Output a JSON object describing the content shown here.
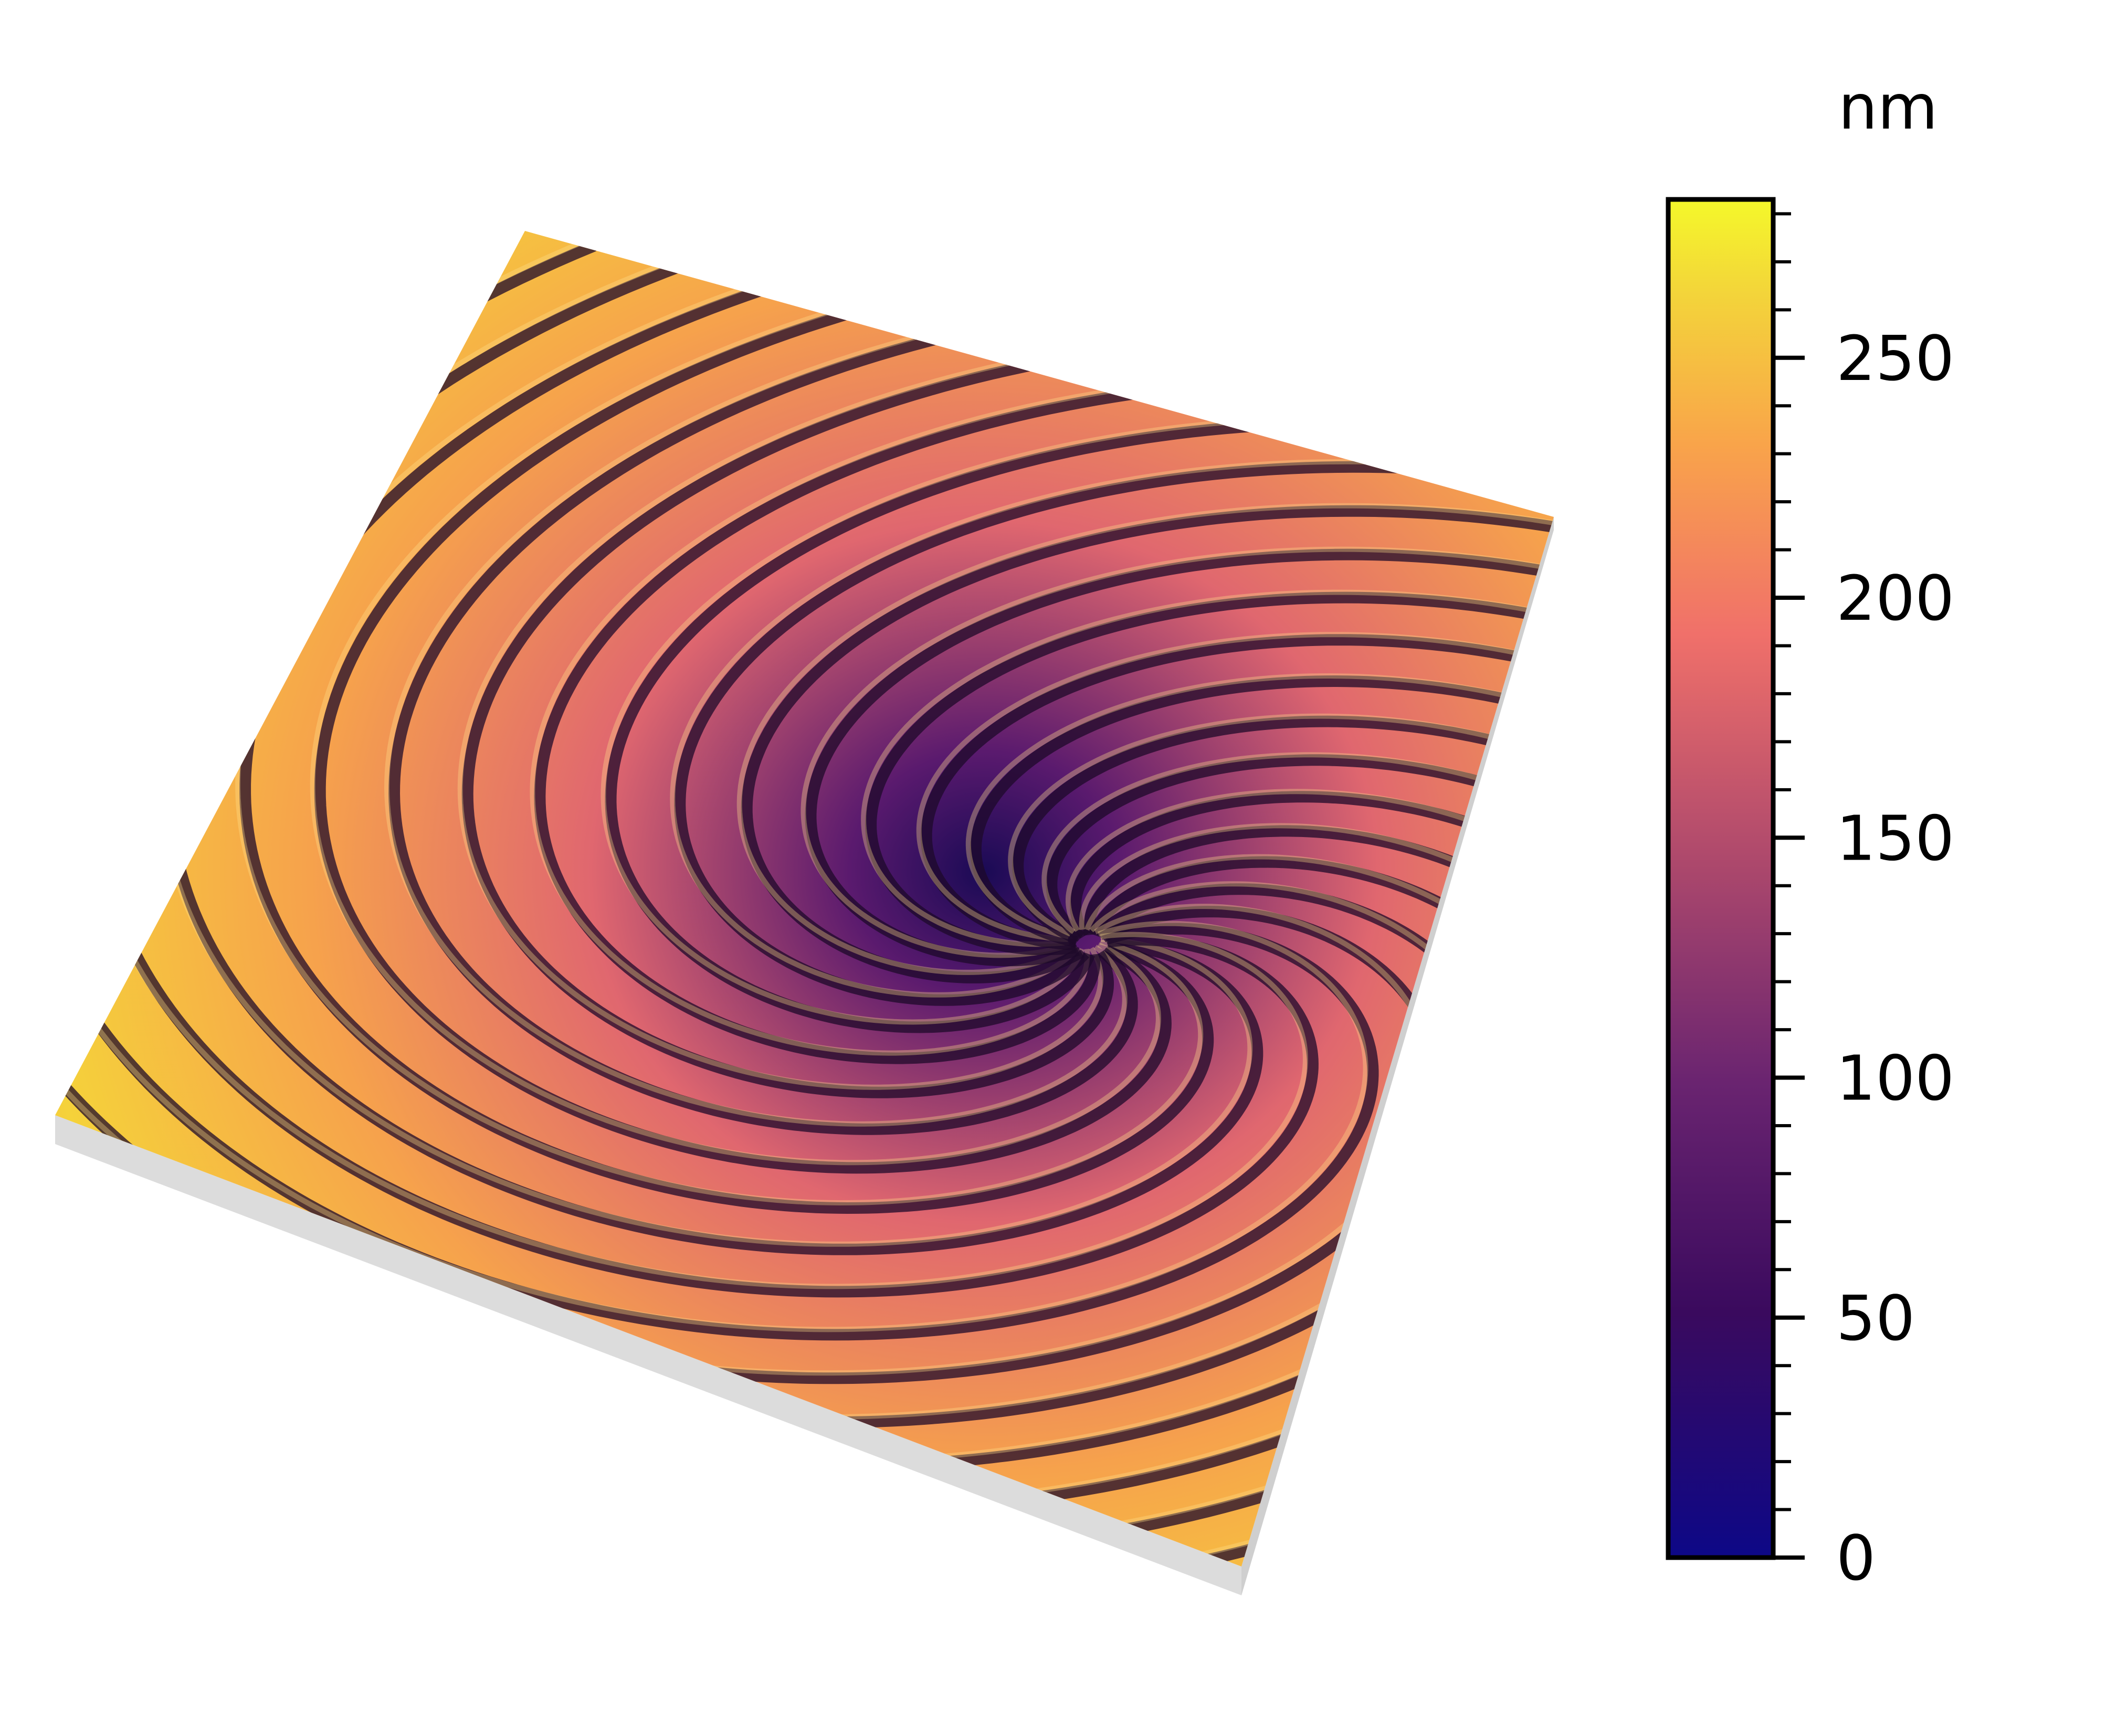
{
  "image": {
    "subject": "3D surface topography of a spiral step pattern",
    "colormap": "plasma",
    "base_color": "#dcdcdc"
  },
  "colorbar": {
    "unit": "nm",
    "min": 0,
    "max": 283,
    "major_ticks": [
      0,
      50,
      100,
      150,
      200,
      250
    ],
    "minor_tick_step": 10,
    "gradient_stops": [
      {
        "offset": 0.0,
        "color": "#0d0887"
      },
      {
        "offset": 0.18,
        "color": "#3a0a5e"
      },
      {
        "offset": 0.35,
        "color": "#6a2470"
      },
      {
        "offset": 0.52,
        "color": "#b04a6c"
      },
      {
        "offset": 0.68,
        "color": "#f0706a"
      },
      {
        "offset": 0.82,
        "color": "#f9a44a"
      },
      {
        "offset": 0.93,
        "color": "#f3d43a"
      },
      {
        "offset": 1.0,
        "color": "#f4f82a"
      }
    ]
  }
}
